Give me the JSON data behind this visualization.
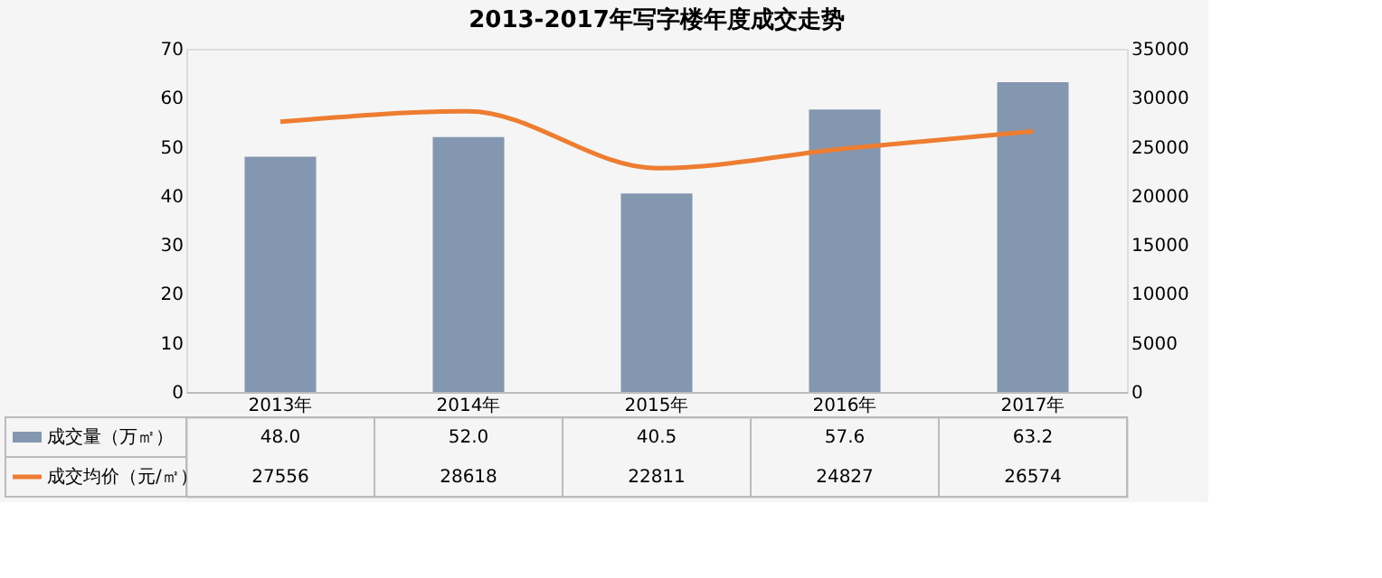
{
  "chart_data": {
    "type": "bar",
    "title": "2013-2017年写字楼年度成交走势",
    "categories": [
      "2013年",
      "2014年",
      "2015年",
      "2016年",
      "2017年"
    ],
    "series": [
      {
        "name": "成交量（万㎡）",
        "color": "#8497b0",
        "values": [
          48.0,
          52.0,
          40.5,
          57.6,
          63.2
        ],
        "value_labels": [
          "48.0",
          "52.0",
          "40.5",
          "57.6",
          "63.2"
        ]
      },
      {
        "name": "成交均价（元/㎡）",
        "type": "line",
        "axis": "y2",
        "color": "#ed7d31",
        "values": [
          27556,
          28618,
          22811,
          24827,
          26574
        ],
        "value_labels": [
          "27556",
          "28618",
          "22811",
          "24827",
          "26574"
        ]
      }
    ],
    "ylim": [
      0,
      70
    ],
    "yticks": [
      0,
      10,
      20,
      30,
      40,
      50,
      60,
      70
    ],
    "y2lim": [
      0,
      35000
    ],
    "y2ticks": [
      0,
      5000,
      10000,
      15000,
      20000,
      25000,
      30000,
      35000
    ],
    "grid": false,
    "legend": "bottom"
  }
}
